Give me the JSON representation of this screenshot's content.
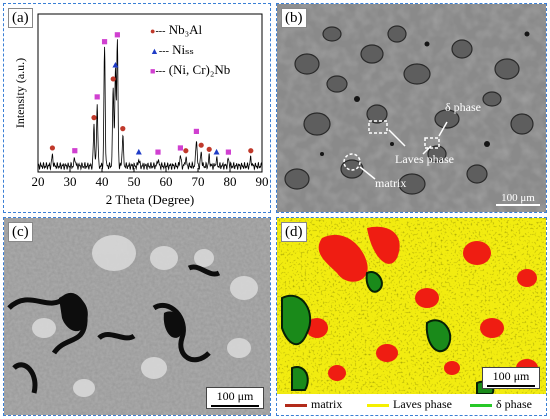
{
  "panels": {
    "a": {
      "tag": "(a)"
    },
    "b": {
      "tag": "(b)",
      "scale": "100 μm",
      "labels": {
        "delta": "δ phase",
        "laves": "Laves phase",
        "matrix": "matrix"
      }
    },
    "c": {
      "tag": "(c)",
      "scale": "100 μm"
    },
    "d": {
      "tag": "(d)",
      "scale": "100 μm",
      "legend": [
        {
          "label": "matrix",
          "color": "#b22a1a"
        },
        {
          "label": "Laves phase",
          "color": "#f5f000"
        },
        {
          "label": "δ phase",
          "color": "#28c828"
        }
      ]
    }
  },
  "chart_data": {
    "type": "line",
    "xlabel": "2 Theta (Degree)",
    "ylabel": "Intensity (a.u.)",
    "xlim": [
      20,
      90
    ],
    "xticks": [
      "20",
      "30",
      "40",
      "50",
      "60",
      "70",
      "80",
      "90"
    ],
    "legend": [
      {
        "label": "Nb₃Al",
        "marker": "circle",
        "color": "#c0392b"
      },
      {
        "label": "Niₛₛ",
        "marker": "triangle",
        "color": "#1f3cc7"
      },
      {
        "label": "(Ni, Cr)₂Nb",
        "marker": "square",
        "color": "#d040d0"
      }
    ],
    "peaks": [
      {
        "x": 24.5,
        "h": 0.08,
        "m": "circle"
      },
      {
        "x": 31.5,
        "h": 0.06,
        "m": "square"
      },
      {
        "x": 37.5,
        "h": 0.3,
        "m": "circle"
      },
      {
        "x": 38.5,
        "h": 0.45,
        "m": "square"
      },
      {
        "x": 40.8,
        "h": 0.85,
        "m": "square"
      },
      {
        "x": 43.5,
        "h": 0.58,
        "m": "circle"
      },
      {
        "x": 44.2,
        "h": 0.68,
        "m": "triangle"
      },
      {
        "x": 44.8,
        "h": 0.9,
        "m": "square"
      },
      {
        "x": 46.5,
        "h": 0.22,
        "m": "circle"
      },
      {
        "x": 51.5,
        "h": 0.05,
        "m": "triangle"
      },
      {
        "x": 57.5,
        "h": 0.05,
        "m": "square"
      },
      {
        "x": 64.5,
        "h": 0.08,
        "m": "square"
      },
      {
        "x": 66.2,
        "h": 0.06,
        "m": "circle"
      },
      {
        "x": 69.5,
        "h": 0.2,
        "m": "square"
      },
      {
        "x": 71.0,
        "h": 0.1,
        "m": "circle"
      },
      {
        "x": 73.5,
        "h": 0.07,
        "m": "circle"
      },
      {
        "x": 75.8,
        "h": 0.05,
        "m": "triangle"
      },
      {
        "x": 79.5,
        "h": 0.05,
        "m": "square"
      },
      {
        "x": 86.5,
        "h": 0.06,
        "m": "circle"
      }
    ]
  }
}
